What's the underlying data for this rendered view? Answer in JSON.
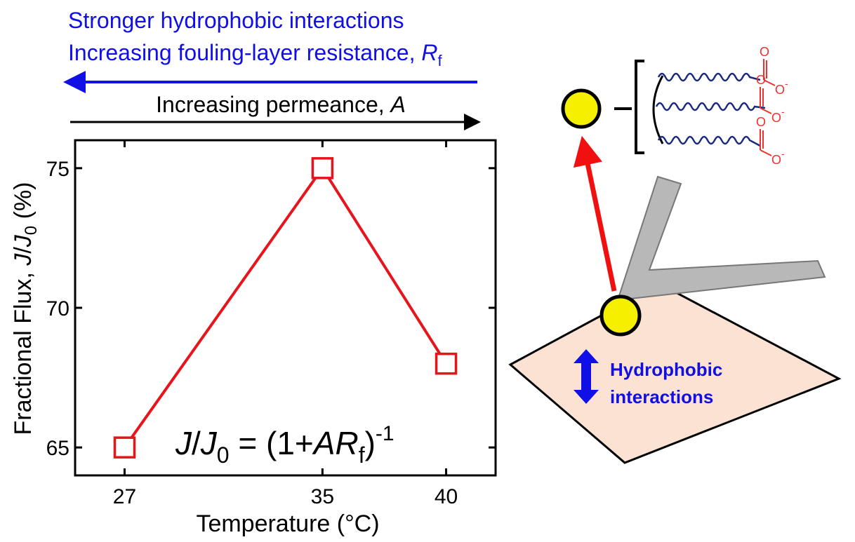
{
  "chart_data": {
    "type": "line",
    "top_annotations": {
      "blue_line1": "Stronger hydrophobic interactions",
      "blue_line2": [
        "Increasing fouling-layer resistance, ",
        "R",
        "f"
      ],
      "black_line": [
        "Increasing permeance, ",
        "A"
      ]
    },
    "x": [
      27,
      35,
      40
    ],
    "xlim": [
      25,
      42
    ],
    "xticks": [
      27,
      35,
      40
    ],
    "ylim": [
      64,
      76
    ],
    "yticks": [
      65,
      70,
      75
    ],
    "x_label": "Temperature (°C)",
    "y_label": [
      "Fractional Flux, ",
      "J",
      "/",
      "J",
      "0",
      " (%)"
    ],
    "equation": [
      "J",
      "/",
      "J",
      "0",
      " = (1+",
      "AR",
      "f",
      ")",
      "-1"
    ],
    "series": [
      {
        "color": "#e8141c",
        "values": [
          65,
          75,
          68
        ]
      }
    ]
  },
  "diagram": {
    "label": [
      "Hydrophobic",
      "interactions"
    ],
    "carboxylate": {
      "atom": "O",
      "charge": "-"
    }
  }
}
